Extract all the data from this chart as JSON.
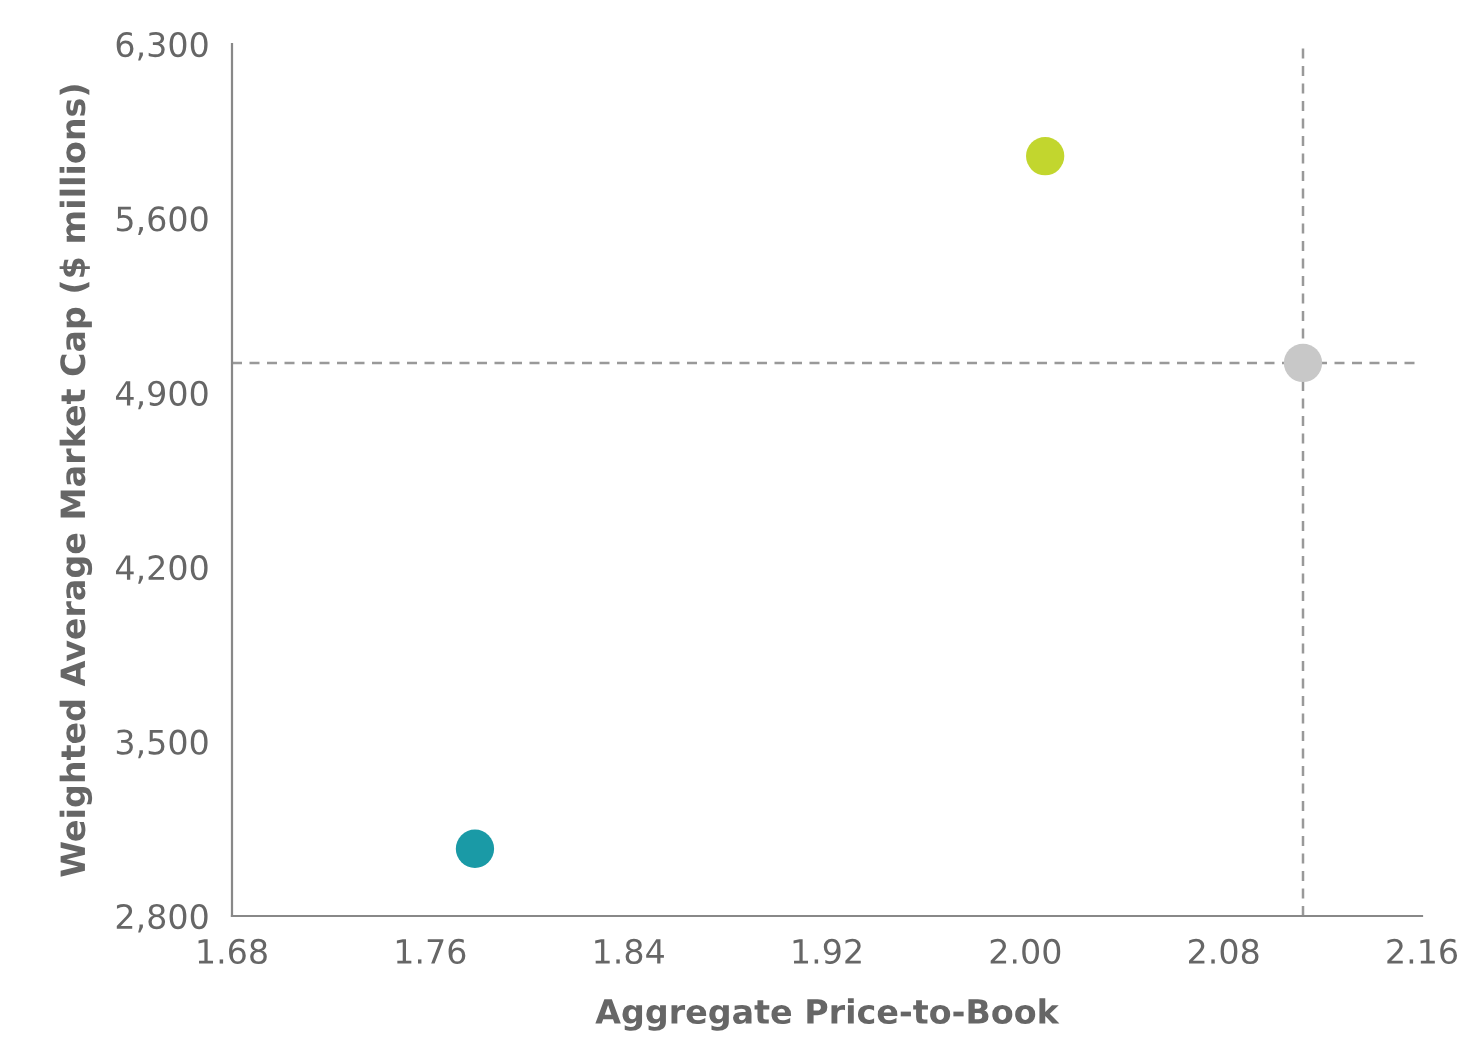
{
  "chart_data": {
    "type": "scatter",
    "xlabel": "Aggregate Price-to-Book",
    "ylabel": "Weighted Average Market Cap ($ millions)",
    "x": [
      1.778,
      2.008,
      2.112
    ],
    "values": [
      3070,
      5850,
      5020
    ],
    "colors": [
      "#1a9aa6",
      "#c2d62e",
      "#c8c8c8"
    ],
    "xlim": [
      1.68,
      2.16
    ],
    "xticks": [
      {
        "value": 1.68,
        "label": "1.68"
      },
      {
        "value": 1.76,
        "label": "1.76"
      },
      {
        "value": 1.84,
        "label": "1.84"
      },
      {
        "value": 1.92,
        "label": "1.92"
      },
      {
        "value": 2.0,
        "label": "2.00"
      },
      {
        "value": 2.08,
        "label": "2.08"
      },
      {
        "value": 2.16,
        "label": "2.16"
      }
    ],
    "ylim": [
      2800,
      6300
    ],
    "yticks": [
      {
        "value": 2800,
        "label": "2,800"
      },
      {
        "value": 3500,
        "label": "3,500"
      },
      {
        "value": 4200,
        "label": "4,200"
      },
      {
        "value": 4900,
        "label": "4,900"
      },
      {
        "value": 5600,
        "label": "5,600"
      },
      {
        "value": 6300,
        "label": "6,300"
      }
    ],
    "ref_lines": [
      {
        "axis": "x",
        "value": 2.112,
        "label": null,
        "color": "#999999",
        "line_style": "dashed"
      },
      {
        "axis": "y",
        "value": 5020,
        "label": null,
        "color": "#999999",
        "line_style": "dashed"
      }
    ],
    "grid": false,
    "legend": false,
    "marker": "circle"
  }
}
